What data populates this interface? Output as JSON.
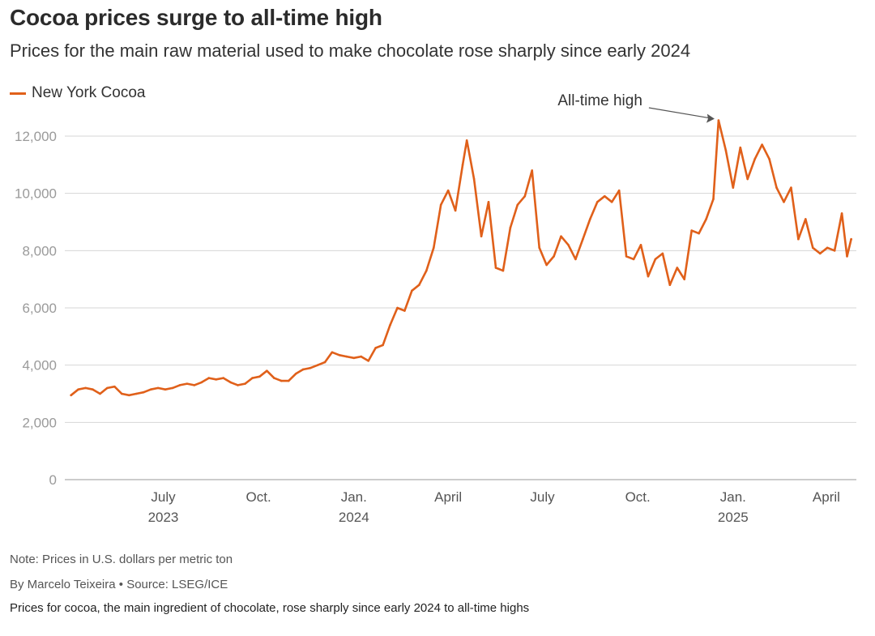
{
  "title": "Cocoa prices surge to all-time high",
  "subtitle": "Prices for the main raw material used to make chocolate rose sharply since early 2024",
  "legend": {
    "label": "New York Cocoa",
    "color": "#e0601a"
  },
  "annotation": {
    "text": "All-time high"
  },
  "note": "Note: Prices in U.S. dollars per metric ton",
  "byline": "By Marcelo Teixeira • Source: LSEG/ICE",
  "caption": "Prices for cocoa, the main ingredient of chocolate, rose sharply since early 2024 to all-time highs",
  "chart_data": {
    "type": "line",
    "title": "Cocoa prices surge to all-time high",
    "ylim": [
      0,
      12000
    ],
    "yticks": [
      0,
      2000,
      4000,
      6000,
      8000,
      10000,
      12000
    ],
    "ytick_labels": [
      "0",
      "2,000",
      "4,000",
      "6,000",
      "8,000",
      "10,000",
      "12,000"
    ],
    "xlim": [
      "2023-03-28",
      "2025-04-30"
    ],
    "xticks": [
      {
        "date": "2023-07-01",
        "label": "July",
        "year": "2023"
      },
      {
        "date": "2023-10-01",
        "label": "Oct.",
        "year": ""
      },
      {
        "date": "2024-01-01",
        "label": "Jan.",
        "year": "2024"
      },
      {
        "date": "2024-04-01",
        "label": "April",
        "year": ""
      },
      {
        "date": "2024-07-01",
        "label": "July",
        "year": ""
      },
      {
        "date": "2024-10-01",
        "label": "Oct.",
        "year": ""
      },
      {
        "date": "2025-01-01",
        "label": "Jan.",
        "year": "2025"
      },
      {
        "date": "2025-04-01",
        "label": "April",
        "year": ""
      }
    ],
    "grid": true,
    "legend_position": "top-left",
    "series": [
      {
        "name": "New York Cocoa",
        "color": "#e0601a",
        "points": [
          [
            "2023-04-03",
            2950
          ],
          [
            "2023-04-10",
            3150
          ],
          [
            "2023-04-17",
            3200
          ],
          [
            "2023-04-24",
            3150
          ],
          [
            "2023-05-01",
            3000
          ],
          [
            "2023-05-08",
            3200
          ],
          [
            "2023-05-15",
            3250
          ],
          [
            "2023-05-22",
            3000
          ],
          [
            "2023-05-29",
            2950
          ],
          [
            "2023-06-05",
            3000
          ],
          [
            "2023-06-12",
            3050
          ],
          [
            "2023-06-19",
            3150
          ],
          [
            "2023-06-26",
            3200
          ],
          [
            "2023-07-03",
            3150
          ],
          [
            "2023-07-10",
            3200
          ],
          [
            "2023-07-17",
            3300
          ],
          [
            "2023-07-24",
            3350
          ],
          [
            "2023-07-31",
            3300
          ],
          [
            "2023-08-07",
            3400
          ],
          [
            "2023-08-14",
            3550
          ],
          [
            "2023-08-21",
            3500
          ],
          [
            "2023-08-28",
            3550
          ],
          [
            "2023-09-04",
            3400
          ],
          [
            "2023-09-11",
            3300
          ],
          [
            "2023-09-18",
            3350
          ],
          [
            "2023-09-25",
            3550
          ],
          [
            "2023-10-02",
            3600
          ],
          [
            "2023-10-09",
            3800
          ],
          [
            "2023-10-16",
            3550
          ],
          [
            "2023-10-23",
            3450
          ],
          [
            "2023-10-30",
            3450
          ],
          [
            "2023-11-06",
            3700
          ],
          [
            "2023-11-13",
            3850
          ],
          [
            "2023-11-20",
            3900
          ],
          [
            "2023-11-27",
            4000
          ],
          [
            "2023-12-04",
            4100
          ],
          [
            "2023-12-11",
            4450
          ],
          [
            "2023-12-18",
            4350
          ],
          [
            "2023-12-25",
            4300
          ],
          [
            "2024-01-01",
            4250
          ],
          [
            "2024-01-08",
            4300
          ],
          [
            "2024-01-15",
            4150
          ],
          [
            "2024-01-22",
            4600
          ],
          [
            "2024-01-29",
            4700
          ],
          [
            "2024-02-05",
            5400
          ],
          [
            "2024-02-12",
            6000
          ],
          [
            "2024-02-19",
            5900
          ],
          [
            "2024-02-26",
            6600
          ],
          [
            "2024-03-04",
            6800
          ],
          [
            "2024-03-11",
            7300
          ],
          [
            "2024-03-18",
            8100
          ],
          [
            "2024-03-25",
            9600
          ],
          [
            "2024-04-01",
            10100
          ],
          [
            "2024-04-08",
            9400
          ],
          [
            "2024-04-15",
            11000
          ],
          [
            "2024-04-19",
            11850
          ],
          [
            "2024-04-26",
            10500
          ],
          [
            "2024-05-03",
            8500
          ],
          [
            "2024-05-10",
            9700
          ],
          [
            "2024-05-17",
            7400
          ],
          [
            "2024-05-24",
            7300
          ],
          [
            "2024-05-31",
            8800
          ],
          [
            "2024-06-07",
            9600
          ],
          [
            "2024-06-14",
            9900
          ],
          [
            "2024-06-21",
            10800
          ],
          [
            "2024-06-28",
            8100
          ],
          [
            "2024-07-05",
            7500
          ],
          [
            "2024-07-12",
            7800
          ],
          [
            "2024-07-19",
            8500
          ],
          [
            "2024-07-26",
            8200
          ],
          [
            "2024-08-02",
            7700
          ],
          [
            "2024-08-09",
            8400
          ],
          [
            "2024-08-16",
            9100
          ],
          [
            "2024-08-23",
            9700
          ],
          [
            "2024-08-30",
            9900
          ],
          [
            "2024-09-06",
            9700
          ],
          [
            "2024-09-13",
            10100
          ],
          [
            "2024-09-20",
            7800
          ],
          [
            "2024-09-27",
            7700
          ],
          [
            "2024-10-04",
            8200
          ],
          [
            "2024-10-11",
            7100
          ],
          [
            "2024-10-18",
            7700
          ],
          [
            "2024-10-25",
            7900
          ],
          [
            "2024-11-01",
            6800
          ],
          [
            "2024-11-08",
            7400
          ],
          [
            "2024-11-15",
            7000
          ],
          [
            "2024-11-22",
            8700
          ],
          [
            "2024-11-29",
            8600
          ],
          [
            "2024-12-06",
            9100
          ],
          [
            "2024-12-13",
            9800
          ],
          [
            "2024-12-18",
            12550
          ],
          [
            "2024-12-25",
            11500
          ],
          [
            "2025-01-01",
            10200
          ],
          [
            "2025-01-08",
            11600
          ],
          [
            "2025-01-15",
            10500
          ],
          [
            "2025-01-22",
            11200
          ],
          [
            "2025-01-29",
            11700
          ],
          [
            "2025-02-05",
            11200
          ],
          [
            "2025-02-12",
            10200
          ],
          [
            "2025-02-19",
            9700
          ],
          [
            "2025-02-26",
            10200
          ],
          [
            "2025-03-05",
            8400
          ],
          [
            "2025-03-12",
            9100
          ],
          [
            "2025-03-19",
            8100
          ],
          [
            "2025-03-26",
            7900
          ],
          [
            "2025-04-02",
            8100
          ],
          [
            "2025-04-09",
            8000
          ],
          [
            "2025-04-16",
            9300
          ],
          [
            "2025-04-21",
            7800
          ],
          [
            "2025-04-25",
            8400
          ]
        ]
      }
    ]
  }
}
